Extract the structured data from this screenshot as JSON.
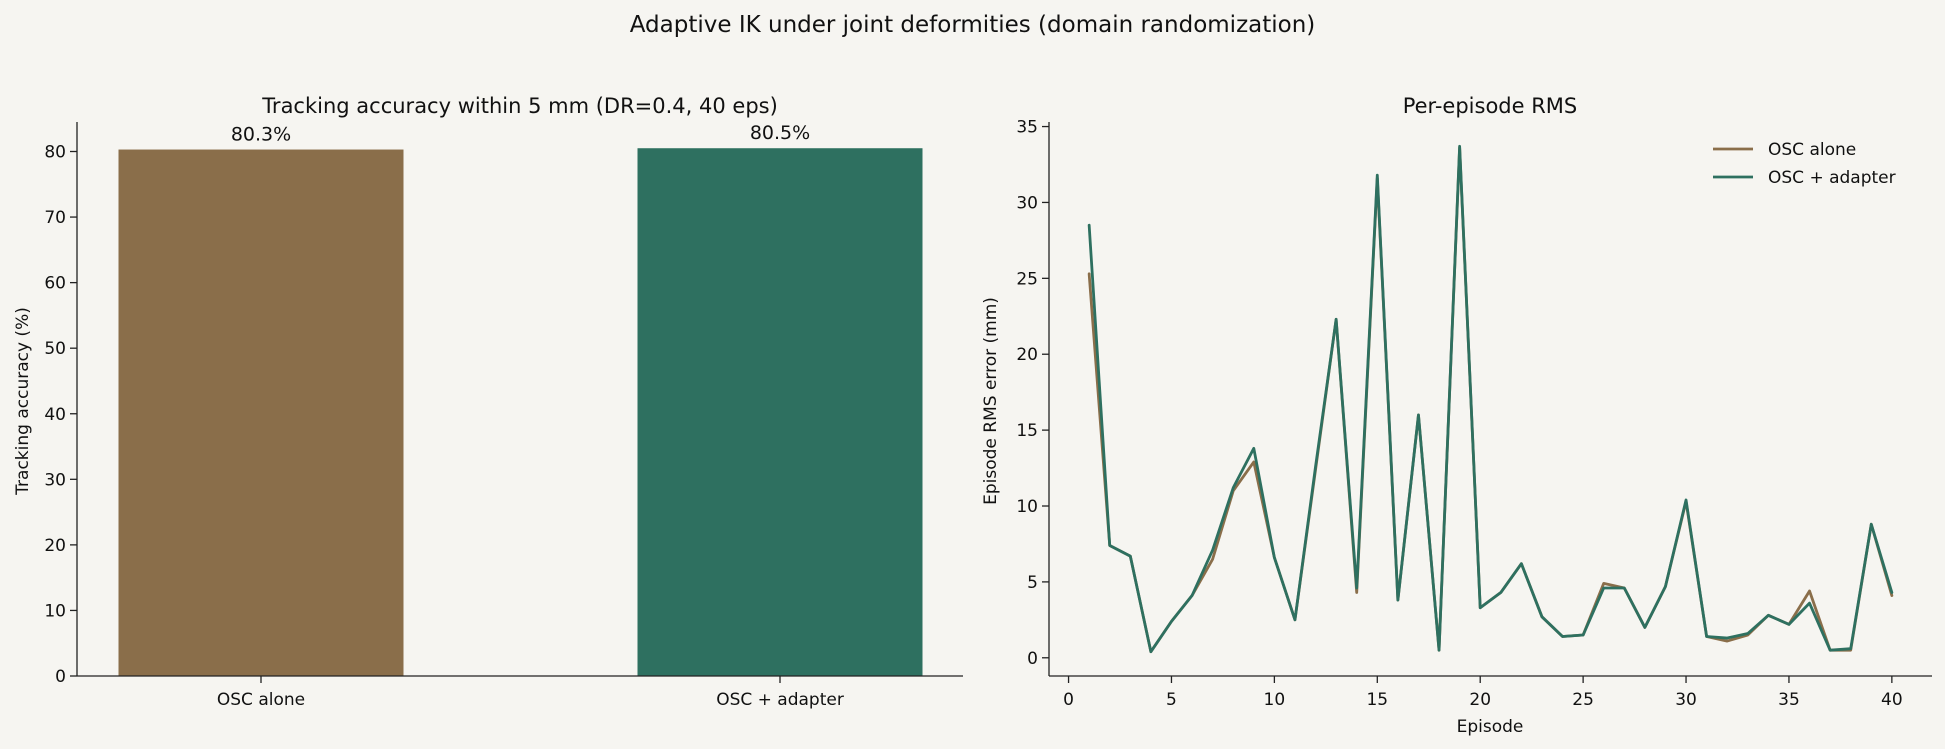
{
  "suptitle": "Adaptive IK under joint deformities (domain randomization)",
  "chart_data": [
    {
      "type": "bar",
      "title": "Tracking accuracy within 5 mm (DR=0.4, 40 eps)",
      "xlabel": "",
      "ylabel": "Tracking accuracy (%)",
      "categories": [
        "OSC alone",
        "OSC + adapter"
      ],
      "values": [
        80.3,
        80.5
      ],
      "data_labels": [
        "80.3%",
        "80.5%"
      ],
      "colors": [
        "#8a6e4a",
        "#2e7060"
      ],
      "ylim": [
        0,
        84.5
      ],
      "yticks": [
        0,
        10,
        20,
        30,
        40,
        50,
        60,
        70,
        80
      ],
      "grid": false
    },
    {
      "type": "line",
      "title": "Per-episode RMS",
      "xlabel": "Episode",
      "ylabel": "Episode RMS error (mm)",
      "x": [
        1,
        2,
        3,
        4,
        5,
        6,
        7,
        8,
        9,
        10,
        11,
        12,
        13,
        14,
        15,
        16,
        17,
        18,
        19,
        20,
        21,
        22,
        23,
        24,
        25,
        26,
        27,
        28,
        29,
        30,
        31,
        32,
        33,
        34,
        35,
        36,
        37,
        38,
        39,
        40
      ],
      "series": [
        {
          "name": "OSC alone",
          "color": "#8a6e4a",
          "values": [
            25.3,
            7.4,
            6.7,
            0.4,
            2.4,
            4.1,
            6.5,
            11.0,
            12.9,
            6.6,
            2.5,
            12.4,
            22.3,
            4.3,
            31.6,
            3.8,
            16.0,
            0.5,
            33.6,
            3.3,
            4.3,
            6.2,
            2.7,
            1.4,
            1.5,
            4.9,
            4.6,
            2.0,
            4.7,
            10.3,
            1.4,
            1.1,
            1.5,
            2.8,
            2.2,
            4.4,
            0.5,
            0.5,
            8.8,
            4.1
          ]
        },
        {
          "name": "OSC + adapter",
          "color": "#2e7060",
          "values": [
            28.5,
            7.4,
            6.7,
            0.4,
            2.4,
            4.1,
            7.1,
            11.2,
            13.8,
            6.6,
            2.5,
            12.6,
            22.3,
            4.6,
            31.8,
            3.8,
            16.0,
            0.5,
            33.7,
            3.3,
            4.3,
            6.2,
            2.7,
            1.4,
            1.5,
            4.6,
            4.6,
            2.0,
            4.7,
            10.4,
            1.4,
            1.3,
            1.6,
            2.8,
            2.2,
            3.6,
            0.5,
            0.6,
            8.8,
            4.3
          ]
        }
      ],
      "xlim": [
        -0.95,
        41.95
      ],
      "ylim": [
        -1.2,
        35.3
      ],
      "xticks": [
        0,
        5,
        10,
        15,
        20,
        25,
        30,
        35,
        40
      ],
      "yticks": [
        0,
        5,
        10,
        15,
        20,
        25,
        30,
        35
      ],
      "legend_position": "top-right",
      "grid": false
    }
  ]
}
